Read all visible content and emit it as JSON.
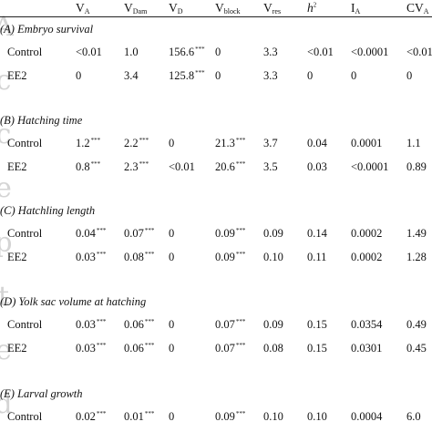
{
  "watermark_glyphs": [
    "A",
    "c",
    "c",
    "e",
    "p",
    "t",
    "e",
    "d"
  ],
  "columns": [
    {
      "main": "V",
      "sub": "A",
      "sup": ""
    },
    {
      "main": "V",
      "sub": "Dam",
      "sup": ""
    },
    {
      "main": "V",
      "sub": "D",
      "sup": ""
    },
    {
      "main": "V",
      "sub": "block",
      "sup": ""
    },
    {
      "main": "V",
      "sub": "res",
      "sup": ""
    },
    {
      "main": "h",
      "sub": "",
      "sup": "2"
    },
    {
      "main": "I",
      "sub": "A",
      "sup": ""
    },
    {
      "main": "CV",
      "sub": "A",
      "sup": ""
    }
  ],
  "sections": [
    {
      "title": "(A) Embryo survival",
      "rows": [
        {
          "label": "Control",
          "cells": [
            {
              "v": "<0.01",
              "sig": ""
            },
            {
              "v": "1.0",
              "sig": ""
            },
            {
              "v": "156.6",
              "sig": "***"
            },
            {
              "v": "0",
              "sig": ""
            },
            {
              "v": "3.3",
              "sig": ""
            },
            {
              "v": "<0.01",
              "sig": ""
            },
            {
              "v": "<0.0001",
              "sig": ""
            },
            {
              "v": "<0.01",
              "sig": ""
            }
          ]
        },
        {
          "label": "EE2",
          "cells": [
            {
              "v": "0",
              "sig": ""
            },
            {
              "v": "3.4",
              "sig": ""
            },
            {
              "v": "125.8",
              "sig": "***"
            },
            {
              "v": "0",
              "sig": ""
            },
            {
              "v": "3.3",
              "sig": ""
            },
            {
              "v": "0",
              "sig": ""
            },
            {
              "v": "0",
              "sig": ""
            },
            {
              "v": "0",
              "sig": ""
            }
          ]
        }
      ]
    },
    {
      "title": "(B) Hatching time",
      "rows": [
        {
          "label": "Control",
          "cells": [
            {
              "v": "1.2",
              "sig": "***"
            },
            {
              "v": "2.2",
              "sig": "***"
            },
            {
              "v": "0",
              "sig": ""
            },
            {
              "v": "21.3",
              "sig": "***"
            },
            {
              "v": "3.7",
              "sig": ""
            },
            {
              "v": "0.04",
              "sig": ""
            },
            {
              "v": "0.0001",
              "sig": ""
            },
            {
              "v": "1.1",
              "sig": ""
            }
          ]
        },
        {
          "label": "EE2",
          "cells": [
            {
              "v": "0.8",
              "sig": "***"
            },
            {
              "v": "2.3",
              "sig": "***"
            },
            {
              "v": "<0.01",
              "sig": ""
            },
            {
              "v": "20.6",
              "sig": "***"
            },
            {
              "v": "3.5",
              "sig": ""
            },
            {
              "v": "0.03",
              "sig": ""
            },
            {
              "v": "<0.0001",
              "sig": ""
            },
            {
              "v": "0.89",
              "sig": ""
            }
          ]
        }
      ]
    },
    {
      "title": "(C) Hatchling length",
      "rows": [
        {
          "label": "Control",
          "cells": [
            {
              "v": "0.04",
              "sig": "***"
            },
            {
              "v": "0.07",
              "sig": "***"
            },
            {
              "v": "0",
              "sig": ""
            },
            {
              "v": "0.09",
              "sig": "***"
            },
            {
              "v": "0.09",
              "sig": ""
            },
            {
              "v": "0.14",
              "sig": ""
            },
            {
              "v": "0.0002",
              "sig": ""
            },
            {
              "v": "1.49",
              "sig": ""
            }
          ]
        },
        {
          "label": "EE2",
          "cells": [
            {
              "v": "0.03",
              "sig": "***"
            },
            {
              "v": "0.08",
              "sig": "***"
            },
            {
              "v": "0",
              "sig": ""
            },
            {
              "v": "0.09",
              "sig": "***"
            },
            {
              "v": "0.10",
              "sig": ""
            },
            {
              "v": "0.11",
              "sig": ""
            },
            {
              "v": "0.0002",
              "sig": ""
            },
            {
              "v": "1.28",
              "sig": ""
            }
          ]
        }
      ]
    },
    {
      "title": "(D) Yolk sac volume at hatching",
      "rows": [
        {
          "label": "Control",
          "cells": [
            {
              "v": "0.03",
              "sig": "***"
            },
            {
              "v": "0.06",
              "sig": "***"
            },
            {
              "v": "0",
              "sig": ""
            },
            {
              "v": "0.07",
              "sig": "***"
            },
            {
              "v": "0.09",
              "sig": ""
            },
            {
              "v": "0.15",
              "sig": ""
            },
            {
              "v": "0.0354",
              "sig": ""
            },
            {
              "v": "0.49",
              "sig": ""
            }
          ]
        },
        {
          "label": "EE2",
          "cells": [
            {
              "v": "0.03",
              "sig": "***"
            },
            {
              "v": "0.06",
              "sig": "***"
            },
            {
              "v": "0",
              "sig": ""
            },
            {
              "v": "0.07",
              "sig": "***"
            },
            {
              "v": "0.08",
              "sig": ""
            },
            {
              "v": "0.15",
              "sig": ""
            },
            {
              "v": "0.0301",
              "sig": ""
            },
            {
              "v": "0.45",
              "sig": ""
            }
          ]
        }
      ]
    },
    {
      "title": "(E) Larval growth",
      "rows": [
        {
          "label": "Control",
          "cells": [
            {
              "v": "0.02",
              "sig": "***"
            },
            {
              "v": "0.01",
              "sig": "***"
            },
            {
              "v": "0",
              "sig": ""
            },
            {
              "v": "0.09",
              "sig": "***"
            },
            {
              "v": "0.10",
              "sig": ""
            },
            {
              "v": "0.10",
              "sig": ""
            },
            {
              "v": "0.0004",
              "sig": ""
            },
            {
              "v": "6.0",
              "sig": ""
            }
          ]
        }
      ]
    }
  ]
}
